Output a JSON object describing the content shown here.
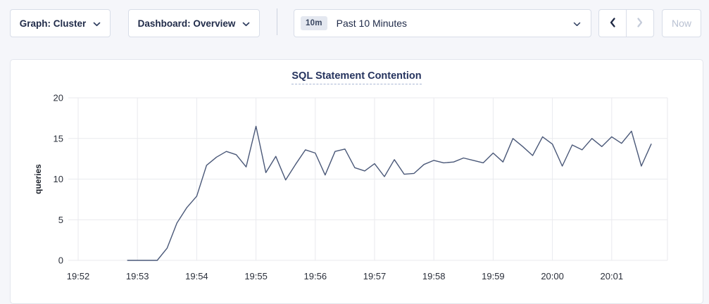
{
  "toolbar": {
    "graph_dropdown": {
      "label": "Graph: Cluster"
    },
    "dashboard_dropdown": {
      "label": "Dashboard: Overview"
    },
    "time_picker": {
      "badge": "10m",
      "label": "Past 10 Minutes"
    },
    "now_label": "Now"
  },
  "icons": {
    "chevron_down": "chevron-down",
    "chevron_left": "chevron-left (time backward, enabled)",
    "chevron_right": "chevron-right (time forward, disabled)"
  },
  "colors": {
    "line": "#4a5878",
    "grid": "#e9eaee",
    "title": "#25335e",
    "disabled_text": "#b9c1d2",
    "page_bg": "#f5f6fa"
  },
  "chart_data": {
    "type": "line",
    "title": "SQL Statement Contention",
    "xlabel": "",
    "ylabel": "queries",
    "ylim": [
      0,
      20
    ],
    "yticks": [
      0,
      5,
      10,
      15,
      20
    ],
    "xticks": [
      "19:52",
      "19:53",
      "19:54",
      "19:55",
      "19:56",
      "19:57",
      "19:58",
      "19:59",
      "20:00",
      "20:01"
    ],
    "grid": true,
    "legend": "none",
    "series": [
      {
        "name": "queries",
        "points": [
          [
            "19:52:50",
            0
          ],
          [
            "19:53:00",
            0
          ],
          [
            "19:53:10",
            0
          ],
          [
            "19:53:20",
            0
          ],
          [
            "19:53:30",
            1.5
          ],
          [
            "19:53:40",
            4.6
          ],
          [
            "19:53:50",
            6.5
          ],
          [
            "19:54:00",
            7.9
          ],
          [
            "19:54:10",
            11.7
          ],
          [
            "19:54:20",
            12.7
          ],
          [
            "19:54:30",
            13.4
          ],
          [
            "19:54:40",
            13.0
          ],
          [
            "19:54:50",
            11.5
          ],
          [
            "19:55:00",
            16.5
          ],
          [
            "19:55:10",
            10.8
          ],
          [
            "19:55:20",
            12.8
          ],
          [
            "19:55:30",
            9.9
          ],
          [
            "19:55:40",
            11.8
          ],
          [
            "19:55:50",
            13.6
          ],
          [
            "19:56:00",
            13.2
          ],
          [
            "19:56:10",
            10.5
          ],
          [
            "19:56:20",
            13.4
          ],
          [
            "19:56:30",
            13.7
          ],
          [
            "19:56:40",
            11.4
          ],
          [
            "19:56:50",
            11.0
          ],
          [
            "19:57:00",
            11.9
          ],
          [
            "19:57:10",
            10.3
          ],
          [
            "19:57:20",
            12.4
          ],
          [
            "19:57:30",
            10.6
          ],
          [
            "19:57:40",
            10.7
          ],
          [
            "19:57:50",
            11.8
          ],
          [
            "19:58:00",
            12.3
          ],
          [
            "19:58:10",
            12.0
          ],
          [
            "19:58:20",
            12.1
          ],
          [
            "19:58:30",
            12.6
          ],
          [
            "19:58:40",
            12.3
          ],
          [
            "19:58:50",
            12.0
          ],
          [
            "19:59:00",
            13.2
          ],
          [
            "19:59:10",
            12.1
          ],
          [
            "19:59:20",
            15.0
          ],
          [
            "19:59:30",
            14.0
          ],
          [
            "19:59:40",
            12.9
          ],
          [
            "19:59:50",
            15.2
          ],
          [
            "20:00:00",
            14.3
          ],
          [
            "20:00:10",
            11.6
          ],
          [
            "20:00:20",
            14.2
          ],
          [
            "20:00:30",
            13.6
          ],
          [
            "20:00:40",
            15.0
          ],
          [
            "20:00:50",
            14.0
          ],
          [
            "20:01:00",
            15.2
          ],
          [
            "20:01:10",
            14.4
          ],
          [
            "20:01:20",
            15.9
          ],
          [
            "20:01:30",
            11.6
          ],
          [
            "20:01:40",
            14.3
          ]
        ]
      }
    ]
  }
}
